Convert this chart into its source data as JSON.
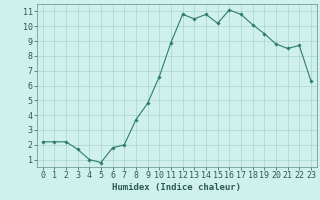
{
  "x": [
    0,
    1,
    2,
    3,
    4,
    5,
    6,
    7,
    8,
    9,
    10,
    11,
    12,
    13,
    14,
    15,
    16,
    17,
    18,
    19,
    20,
    21,
    22,
    23
  ],
  "y": [
    2.2,
    2.2,
    2.2,
    1.7,
    1.0,
    0.8,
    1.8,
    2.0,
    3.7,
    4.8,
    6.6,
    8.9,
    10.8,
    10.5,
    10.8,
    10.2,
    11.1,
    10.8,
    10.1,
    9.5,
    8.8,
    8.5,
    8.7,
    6.3
  ],
  "line_color": "#2d7d6e",
  "marker": "D",
  "marker_size": 1.8,
  "bg_color": "#cff0eb",
  "grid_color": "#aad4ce",
  "xlabel": "Humidex (Indice chaleur)",
  "xlabel_fontsize": 6.5,
  "tick_fontsize": 6.0,
  "xlim": [
    -0.5,
    23.5
  ],
  "ylim": [
    0.5,
    11.5
  ],
  "yticks": [
    1,
    2,
    3,
    4,
    5,
    6,
    7,
    8,
    9,
    10,
    11
  ],
  "xticks": [
    0,
    1,
    2,
    3,
    4,
    5,
    6,
    7,
    8,
    9,
    10,
    11,
    12,
    13,
    14,
    15,
    16,
    17,
    18,
    19,
    20,
    21,
    22,
    23
  ],
  "linewidth": 0.8
}
